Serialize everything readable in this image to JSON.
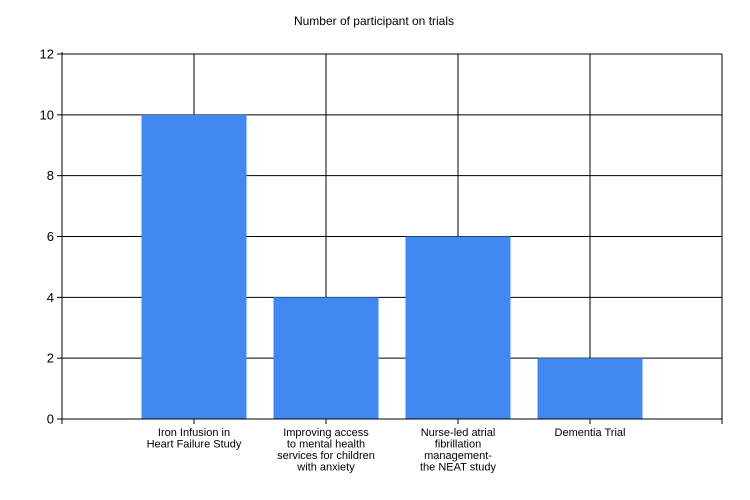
{
  "chart_data": {
    "type": "bar",
    "title": "Number of participant on trials",
    "xlabel": "",
    "ylabel": "",
    "ylim": [
      0,
      12
    ],
    "yticks": [
      0,
      2,
      4,
      6,
      8,
      10,
      12
    ],
    "grid": true,
    "categories": [
      [
        "Iron Infusion in",
        "Heart Failure Study"
      ],
      [
        "Improving access",
        "to mental health",
        "services for children",
        "with anxiety"
      ],
      [
        "Nurse-led atrial",
        "fibrillation",
        "management-",
        "the NEAT study"
      ],
      [
        "Dementia Trial"
      ]
    ],
    "values": [
      10,
      4,
      6,
      2
    ],
    "bar_color": "#4189f0"
  }
}
